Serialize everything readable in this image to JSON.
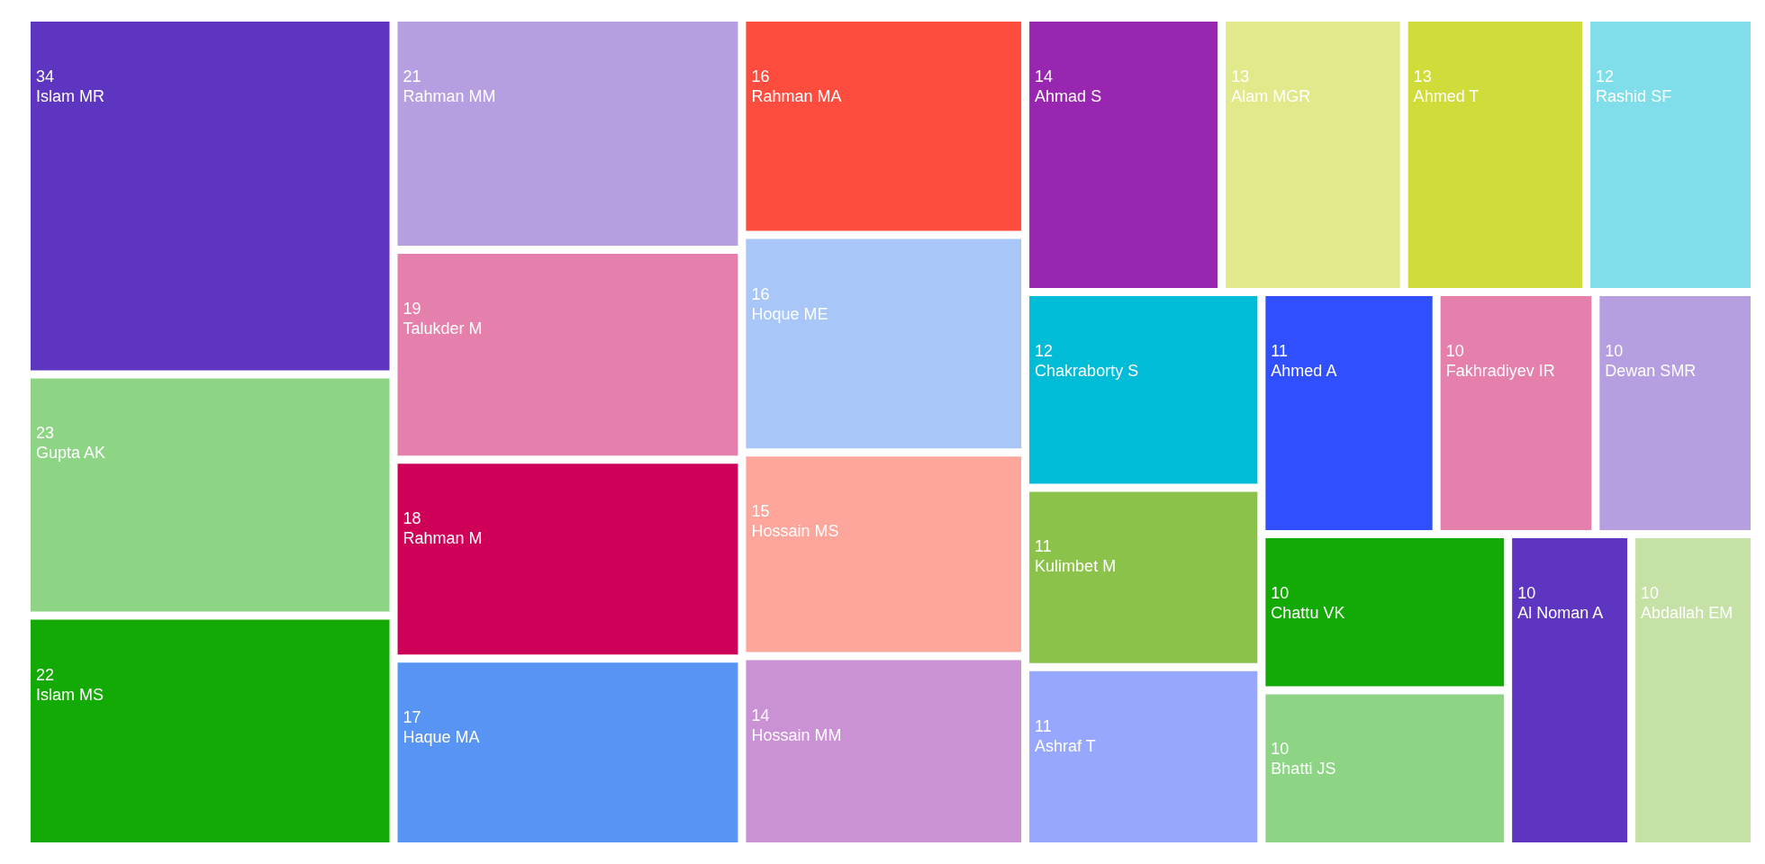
{
  "chart_data": {
    "type": "other",
    "categories": [
      "Islam MR",
      "Gupta AK",
      "Islam MS",
      "Rahman MM",
      "Talukder M",
      "Rahman M",
      "Haque MA",
      "Hoque ME",
      "Rahman MA",
      "Hossain MS",
      "Ahmad S",
      "Hossain MM",
      "Ahmed T",
      "Alam MGR",
      "Chakraborty S",
      "Rashid SF",
      "Ahmed A",
      "Ashraf T",
      "Kulimbet M",
      "Abdallah EM",
      "Al Noman A",
      "Bhatti JS",
      "Chattu VK",
      "Dewan SMR",
      "Fakhradiyev IR"
    ],
    "values": [
      34,
      23,
      22,
      21,
      19,
      18,
      17,
      16,
      16,
      15,
      14,
      14,
      13,
      13,
      12,
      12,
      11,
      11,
      11,
      10,
      10,
      10,
      10,
      10,
      10
    ],
    "colors": [
      "#5e35c0",
      "#8dd585",
      "#14aa05",
      "#b59fe0",
      "#e57fab",
      "#cf0057",
      "#5894f4",
      "#a8c6f8",
      "#fe4c3e",
      "#fea59c",
      "#9926b0",
      "#ca91d5",
      "#cfdc3a",
      "#e2e98a",
      "#00bcd6",
      "#80ddea",
      "#304ffe",
      "#98a7fe",
      "#8bc24a",
      "#c5e1a6",
      "#5e35c0",
      "#8dd585",
      "#14aa05",
      "#b59fe0",
      "#e57fab"
    ],
    "data_labels": true
  }
}
